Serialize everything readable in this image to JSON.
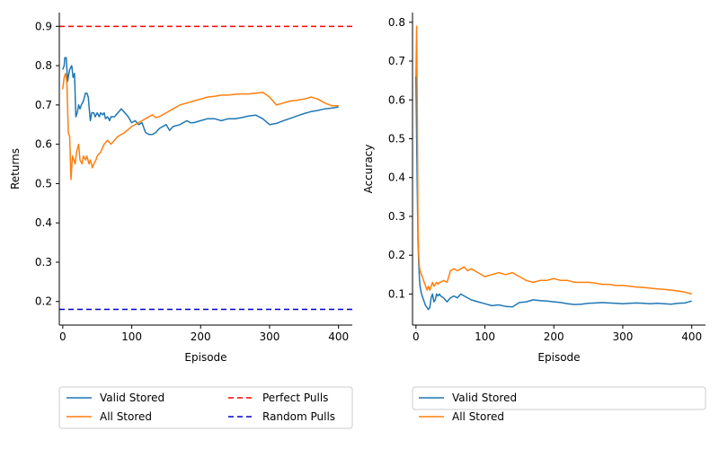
{
  "chart_data": [
    {
      "type": "line",
      "xlabel": "Episode",
      "ylabel": "Returns",
      "xlim": [
        -5,
        420
      ],
      "ylim": [
        0.14,
        0.935
      ],
      "x_ticks": [
        0,
        100,
        200,
        300,
        400
      ],
      "y_ticks": [
        0.2,
        0.3,
        0.4,
        0.5,
        0.6,
        0.7,
        0.8,
        0.9
      ],
      "grid": false,
      "legend_position": "below",
      "legend_columns": 2,
      "series": [
        {
          "name": "Valid Stored",
          "color": "#1f77b4",
          "style": "solid",
          "x": [
            0,
            2,
            3,
            5,
            7,
            10,
            13,
            15,
            17,
            19,
            21,
            23,
            25,
            27,
            30,
            33,
            35,
            37,
            40,
            42,
            45,
            47,
            50,
            53,
            55,
            58,
            60,
            62,
            65,
            68,
            70,
            75,
            80,
            85,
            90,
            95,
            100,
            105,
            110,
            115,
            120,
            125,
            130,
            135,
            140,
            145,
            150,
            155,
            160,
            170,
            180,
            185,
            190,
            200,
            210,
            220,
            230,
            240,
            245,
            250,
            260,
            270,
            280,
            290,
            300,
            310,
            320,
            330,
            340,
            350,
            360,
            370,
            380,
            390,
            400
          ],
          "y": [
            0.79,
            0.8,
            0.82,
            0.82,
            0.76,
            0.79,
            0.8,
            0.77,
            0.78,
            0.67,
            0.68,
            0.7,
            0.69,
            0.7,
            0.71,
            0.73,
            0.73,
            0.72,
            0.66,
            0.68,
            0.68,
            0.67,
            0.68,
            0.67,
            0.68,
            0.675,
            0.68,
            0.665,
            0.67,
            0.66,
            0.67,
            0.67,
            0.68,
            0.69,
            0.68,
            0.67,
            0.655,
            0.66,
            0.65,
            0.655,
            0.63,
            0.625,
            0.625,
            0.63,
            0.64,
            0.645,
            0.65,
            0.635,
            0.645,
            0.65,
            0.66,
            0.655,
            0.655,
            0.66,
            0.665,
            0.665,
            0.66,
            0.665,
            0.665,
            0.665,
            0.668,
            0.672,
            0.674,
            0.665,
            0.65,
            0.653,
            0.66,
            0.666,
            0.672,
            0.678,
            0.683,
            0.686,
            0.69,
            0.692,
            0.695
          ]
        },
        {
          "name": "All Stored",
          "color": "#ff7f0e",
          "style": "solid",
          "x": [
            0,
            2,
            4,
            6,
            8,
            10,
            12,
            14,
            16,
            18,
            20,
            23,
            25,
            28,
            30,
            33,
            35,
            38,
            40,
            43,
            45,
            48,
            50,
            55,
            60,
            65,
            70,
            75,
            80,
            90,
            100,
            110,
            120,
            125,
            130,
            135,
            140,
            150,
            160,
            170,
            180,
            190,
            200,
            210,
            220,
            230,
            240,
            250,
            260,
            270,
            280,
            290,
            300,
            310,
            320,
            330,
            340,
            350,
            360,
            370,
            380,
            390,
            400
          ],
          "y": [
            0.74,
            0.77,
            0.78,
            0.76,
            0.63,
            0.62,
            0.51,
            0.57,
            0.56,
            0.55,
            0.58,
            0.6,
            0.56,
            0.55,
            0.57,
            0.56,
            0.57,
            0.55,
            0.56,
            0.54,
            0.55,
            0.56,
            0.57,
            0.58,
            0.6,
            0.61,
            0.6,
            0.61,
            0.62,
            0.63,
            0.645,
            0.655,
            0.665,
            0.67,
            0.675,
            0.668,
            0.67,
            0.68,
            0.69,
            0.7,
            0.705,
            0.71,
            0.715,
            0.72,
            0.722,
            0.725,
            0.725,
            0.727,
            0.728,
            0.728,
            0.73,
            0.732,
            0.72,
            0.7,
            0.705,
            0.71,
            0.712,
            0.715,
            0.72,
            0.715,
            0.705,
            0.698,
            0.698
          ]
        },
        {
          "name": "Perfect Pulls",
          "color": "#ff0000",
          "style": "dashed",
          "y_constant": 0.9
        },
        {
          "name": "Random Pulls",
          "color": "#0000cd",
          "style": "dashed",
          "y_constant": 0.18
        }
      ]
    },
    {
      "type": "line",
      "xlabel": "Episode",
      "ylabel": "Accuracy",
      "xlim": [
        -5,
        420
      ],
      "ylim": [
        0.02,
        0.825
      ],
      "x_ticks": [
        0,
        100,
        200,
        300,
        400
      ],
      "y_ticks": [
        0.1,
        0.2,
        0.3,
        0.4,
        0.5,
        0.6,
        0.7,
        0.8
      ],
      "grid": false,
      "legend_position": "below",
      "legend_columns": 2,
      "series": [
        {
          "name": "Valid Stored",
          "color": "#1f77b4",
          "style": "solid",
          "x": [
            0,
            1,
            2,
            3,
            4,
            5,
            6,
            7,
            8,
            10,
            12,
            14,
            16,
            18,
            20,
            22,
            24,
            26,
            28,
            30,
            32,
            34,
            36,
            40,
            45,
            50,
            55,
            60,
            65,
            70,
            80,
            90,
            100,
            110,
            120,
            130,
            140,
            150,
            160,
            170,
            180,
            190,
            200,
            210,
            220,
            230,
            240,
            250,
            260,
            270,
            280,
            290,
            300,
            310,
            320,
            330,
            340,
            350,
            360,
            370,
            380,
            390,
            400
          ],
          "y": [
            0.66,
            0.5,
            0.35,
            0.24,
            0.18,
            0.14,
            0.12,
            0.11,
            0.1,
            0.09,
            0.08,
            0.07,
            0.065,
            0.06,
            0.065,
            0.09,
            0.1,
            0.08,
            0.085,
            0.1,
            0.095,
            0.1,
            0.095,
            0.09,
            0.08,
            0.09,
            0.095,
            0.09,
            0.1,
            0.095,
            0.085,
            0.08,
            0.075,
            0.07,
            0.072,
            0.068,
            0.067,
            0.078,
            0.08,
            0.085,
            0.083,
            0.082,
            0.08,
            0.078,
            0.075,
            0.073,
            0.074,
            0.076,
            0.077,
            0.078,
            0.077,
            0.076,
            0.075,
            0.076,
            0.077,
            0.076,
            0.075,
            0.076,
            0.075,
            0.074,
            0.076,
            0.077,
            0.082
          ]
        },
        {
          "name": "All Stored",
          "color": "#ff7f0e",
          "style": "solid",
          "x": [
            0,
            1,
            2,
            3,
            4,
            5,
            6,
            8,
            10,
            12,
            14,
            16,
            18,
            20,
            22,
            24,
            26,
            28,
            30,
            32,
            34,
            36,
            40,
            45,
            50,
            55,
            60,
            65,
            70,
            75,
            80,
            90,
            100,
            110,
            120,
            130,
            140,
            150,
            160,
            170,
            180,
            190,
            200,
            210,
            220,
            230,
            240,
            250,
            260,
            270,
            280,
            290,
            300,
            310,
            320,
            330,
            340,
            350,
            360,
            370,
            380,
            390,
            400
          ],
          "y": [
            0.66,
            0.79,
            0.55,
            0.27,
            0.2,
            0.17,
            0.16,
            0.15,
            0.14,
            0.13,
            0.12,
            0.11,
            0.12,
            0.11,
            0.12,
            0.13,
            0.12,
            0.125,
            0.13,
            0.125,
            0.13,
            0.13,
            0.135,
            0.13,
            0.16,
            0.165,
            0.16,
            0.165,
            0.17,
            0.16,
            0.165,
            0.155,
            0.145,
            0.15,
            0.155,
            0.15,
            0.155,
            0.145,
            0.135,
            0.13,
            0.135,
            0.135,
            0.14,
            0.135,
            0.135,
            0.13,
            0.13,
            0.13,
            0.128,
            0.125,
            0.125,
            0.122,
            0.122,
            0.12,
            0.118,
            0.117,
            0.115,
            0.113,
            0.112,
            0.11,
            0.108,
            0.105,
            0.1
          ]
        }
      ]
    }
  ],
  "legends": [
    {
      "items": [
        "Valid Stored",
        "All Stored",
        "Perfect Pulls",
        "Random Pulls"
      ]
    },
    {
      "items": [
        "Valid Stored",
        "All Stored"
      ]
    }
  ]
}
